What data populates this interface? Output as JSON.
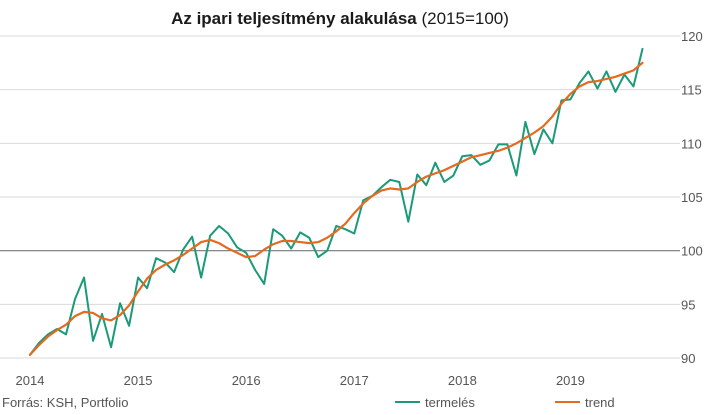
{
  "chart_data": {
    "type": "line",
    "title": "Az ipari teljesítmény alakulása",
    "title_suffix": "(2015=100)",
    "xlabel": "",
    "ylabel": "",
    "ylim": [
      90,
      120
    ],
    "yticks": [
      90,
      95,
      100,
      105,
      110,
      115,
      120
    ],
    "y_axis_side": "right",
    "xlim": [
      2014,
      2019.875
    ],
    "xticks": [
      2014,
      2015,
      2016,
      2017,
      2018,
      2019
    ],
    "grid": true,
    "reference_line": 100,
    "legend_position": "bottom-right",
    "source": "Forrás: KSH, Portfolio",
    "colors": {
      "termeles": "#1a9a78",
      "trend": "#e36a1e",
      "grid": "#d9d9d9",
      "reference": "#777777"
    },
    "x_start": 2014,
    "x_step_months": 1,
    "series": [
      {
        "name": "termelés",
        "color": "#1a9a78",
        "values": [
          90.3,
          91.4,
          92.2,
          92.7,
          92.2,
          95.5,
          97.5,
          91.6,
          94.1,
          91.0,
          95.1,
          93.0,
          97.5,
          96.5,
          99.3,
          98.9,
          98.0,
          100.1,
          101.3,
          97.5,
          101.4,
          102.3,
          101.6,
          100.3,
          99.8,
          98.2,
          96.9,
          102.0,
          101.4,
          100.2,
          101.7,
          101.2,
          99.4,
          100.0,
          102.3,
          102.0,
          101.6,
          104.7,
          105.1,
          105.9,
          106.6,
          106.4,
          102.7,
          107.1,
          106.1,
          108.2,
          106.4,
          107.0,
          108.8,
          108.9,
          108.0,
          108.4,
          109.9,
          109.9,
          107.0,
          112.0,
          109.0,
          111.3,
          110.0,
          114.0,
          114.1,
          115.6,
          116.7,
          115.1,
          116.7,
          114.8,
          116.4,
          115.3,
          118.8
        ]
      },
      {
        "name": "trend",
        "color": "#e36a1e",
        "values": [
          90.3,
          91.2,
          92.0,
          92.6,
          93.1,
          93.9,
          94.3,
          94.2,
          93.7,
          93.5,
          94.0,
          94.9,
          96.2,
          97.4,
          98.2,
          98.7,
          99.1,
          99.6,
          100.2,
          100.8,
          101.0,
          100.7,
          100.2,
          99.8,
          99.4,
          99.5,
          100.1,
          100.6,
          100.9,
          100.9,
          100.8,
          100.7,
          100.8,
          101.2,
          101.8,
          102.5,
          103.5,
          104.4,
          105.1,
          105.6,
          105.8,
          105.7,
          105.8,
          106.4,
          106.9,
          107.2,
          107.5,
          107.9,
          108.3,
          108.7,
          108.9,
          109.1,
          109.3,
          109.6,
          110.0,
          110.5,
          111.0,
          111.6,
          112.5,
          113.7,
          114.6,
          115.3,
          115.7,
          115.8,
          116.0,
          116.2,
          116.5,
          116.8,
          117.5
        ]
      }
    ]
  }
}
